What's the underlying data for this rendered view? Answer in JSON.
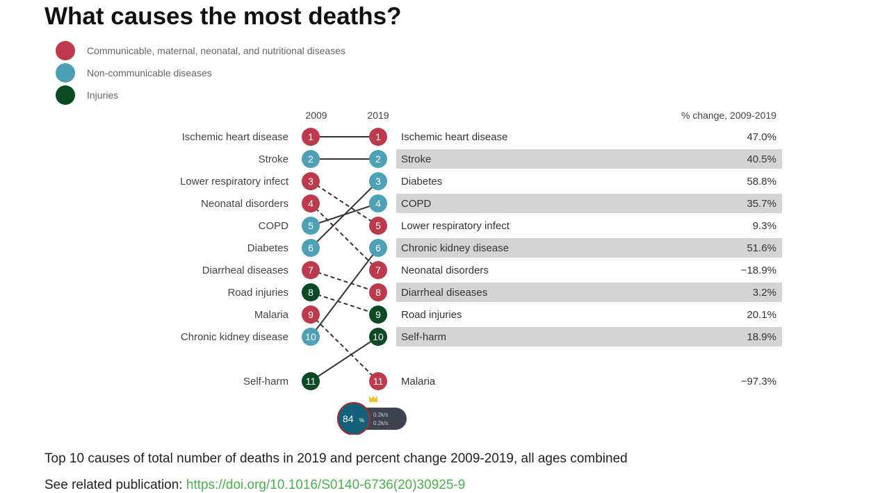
{
  "title": "What causes the most deaths?",
  "legend": [
    {
      "label": "Communicable, maternal, neonatal, and nutritional diseases",
      "color": "#bc3a4b"
    },
    {
      "label": "Non-communicable diseases",
      "color": "#4ea0b5"
    },
    {
      "label": "Injuries",
      "color": "#0b4a24"
    }
  ],
  "chart_data": {
    "type": "slope",
    "columns": [
      "2009",
      "2019"
    ],
    "change_header": "% change, 2009-2019",
    "ranks_2009": [
      {
        "rank": 1,
        "cause": "Ischemic heart disease",
        "group": 0
      },
      {
        "rank": 2,
        "cause": "Stroke",
        "group": 1
      },
      {
        "rank": 3,
        "cause": "Lower respiratory infect",
        "group": 0
      },
      {
        "rank": 4,
        "cause": "Neonatal disorders",
        "group": 0
      },
      {
        "rank": 5,
        "cause": "COPD",
        "group": 1
      },
      {
        "rank": 6,
        "cause": "Diabetes",
        "group": 1
      },
      {
        "rank": 7,
        "cause": "Diarrheal diseases",
        "group": 0
      },
      {
        "rank": 8,
        "cause": "Road injuries",
        "group": 2
      },
      {
        "rank": 9,
        "cause": "Malaria",
        "group": 0
      },
      {
        "rank": 10,
        "cause": "Chronic kidney disease",
        "group": 1
      },
      {
        "rank": 11,
        "cause": "Self-harm",
        "group": 2
      }
    ],
    "ranks_2019": [
      {
        "rank": 1,
        "cause": "Ischemic heart disease",
        "change": "47.0%"
      },
      {
        "rank": 2,
        "cause": "Stroke",
        "change": "40.5%"
      },
      {
        "rank": 3,
        "cause": "Diabetes",
        "change": "58.8%"
      },
      {
        "rank": 4,
        "cause": "COPD",
        "change": "35.7%"
      },
      {
        "rank": 5,
        "cause": "Lower respiratory infect",
        "change": "9.3%"
      },
      {
        "rank": 6,
        "cause": "Chronic kidney disease",
        "change": "51.6%"
      },
      {
        "rank": 7,
        "cause": "Neonatal disorders",
        "change": "−18.9%"
      },
      {
        "rank": 8,
        "cause": "Diarrheal diseases",
        "change": "3.2%"
      },
      {
        "rank": 9,
        "cause": "Road injuries",
        "change": "20.1%"
      },
      {
        "rank": 10,
        "cause": "Self-harm",
        "change": "18.9%"
      },
      {
        "rank": 11,
        "cause": "Malaria",
        "change": "−97.3%"
      }
    ]
  },
  "caption": "Top 10 causes of total number of deaths in 2019 and percent change 2009-2019, all ages combined",
  "publication": {
    "label": "See related publication:",
    "link": "https://doi.org/10.1016/S0140-6736(20)30925-9"
  },
  "overlay_widget": {
    "percent": "84",
    "unit": "%",
    "up": "0.2k/s",
    "down": "0.2k/s"
  }
}
